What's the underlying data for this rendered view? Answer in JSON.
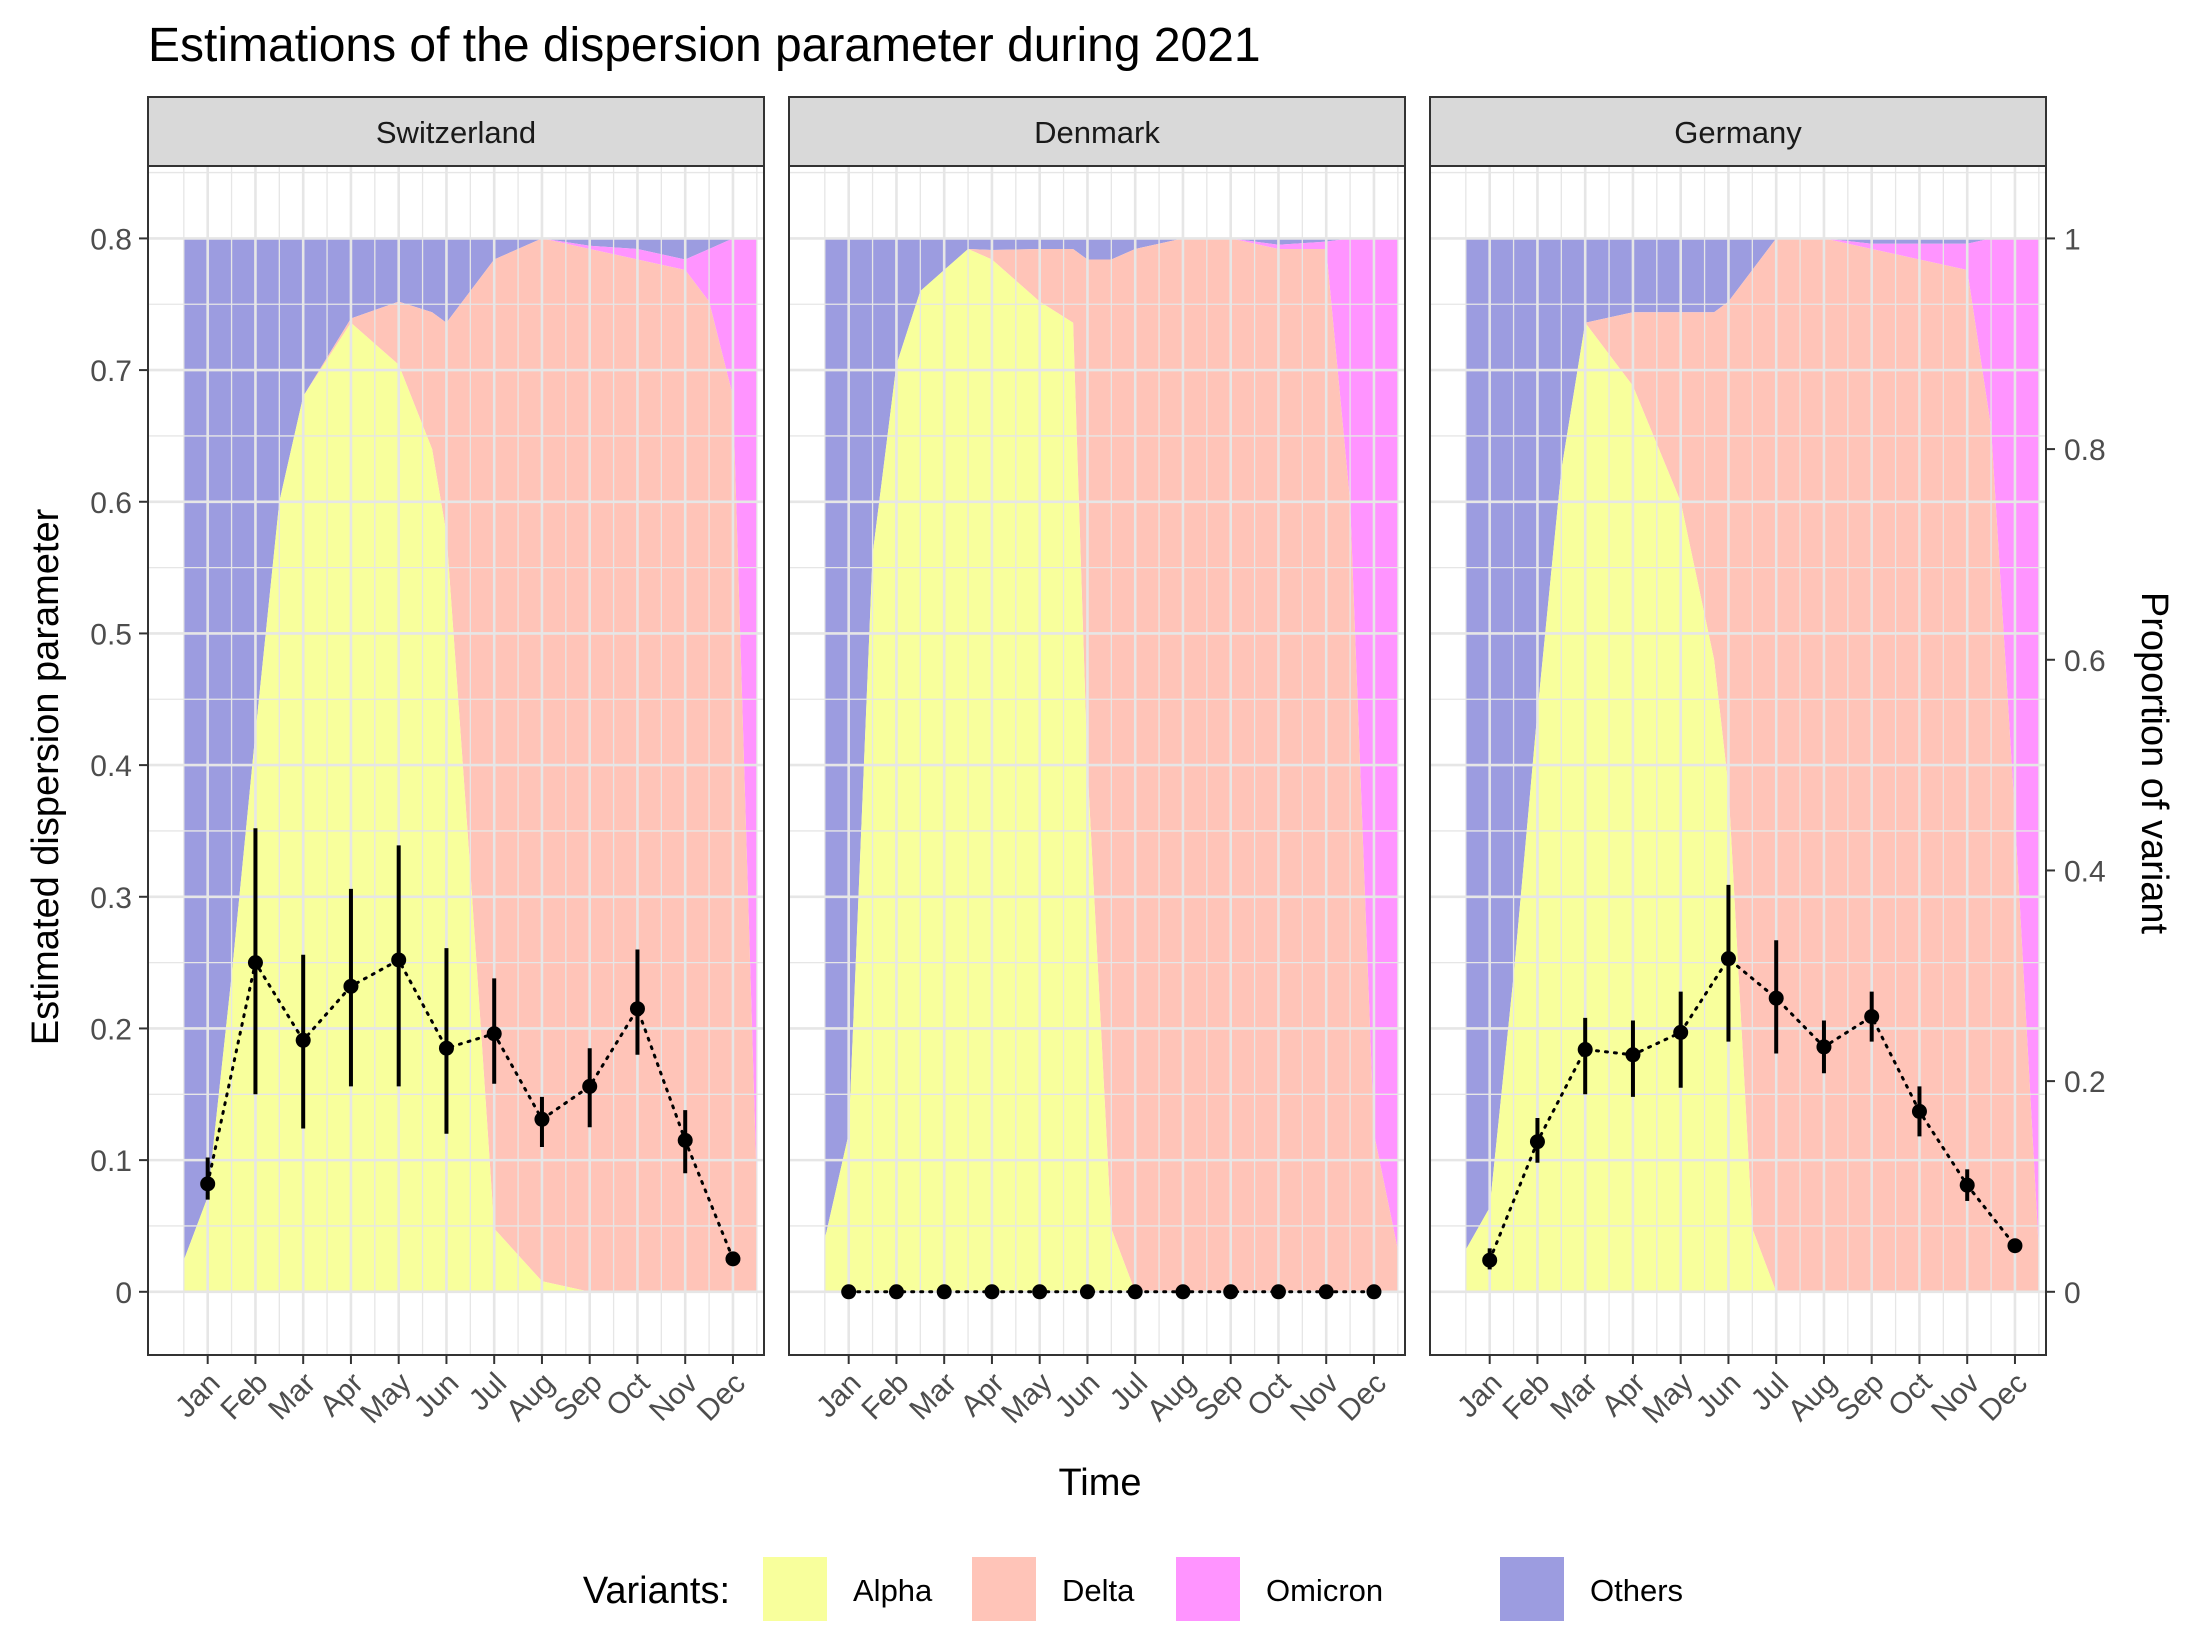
{
  "title": "Estimations of the dispersion parameter during 2021",
  "chart_data": {
    "type": "line",
    "title": "Estimations of the dispersion parameter during 2021",
    "xlabel": "Time",
    "ylabel": "Estimated dispersion parameter",
    "y2label": "Proportion of variant",
    "ylim": [
      -0.048,
      0.855
    ],
    "y2lim": [
      0,
      1
    ],
    "yticks": [
      "0",
      "0.1",
      "0.2",
      "0.3",
      "0.4",
      "0.5",
      "0.6",
      "0.7",
      "0.8"
    ],
    "y2ticks": [
      "0",
      "0.2",
      "0.4",
      "0.6",
      "0.8",
      "1"
    ],
    "grid": true,
    "categories": [
      "Jan",
      "Feb",
      "Mar",
      "Apr",
      "May",
      "Jun",
      "Jul",
      "Aug",
      "Sep",
      "Oct",
      "Nov",
      "Dec"
    ],
    "legend": {
      "title": "Variants:",
      "position": "bottom",
      "items": [
        {
          "label": "Alpha",
          "color": "#f8ff9c"
        },
        {
          "label": "Delta",
          "color": "#ffc4b8"
        },
        {
          "label": "Omicron",
          "color": "#ff94ff"
        },
        {
          "label": "Others",
          "color": "#9c9ce0"
        }
      ]
    },
    "facets": [
      {
        "name": "Switzerland",
        "estimates": [
          0.082,
          0.25,
          0.191,
          0.232,
          0.252,
          0.185,
          0.196,
          0.131,
          0.156,
          0.215,
          0.115,
          0.025
        ],
        "lower": [
          0.07,
          0.15,
          0.124,
          0.156,
          0.156,
          0.12,
          0.158,
          0.11,
          0.125,
          0.18,
          0.09,
          0.02
        ],
        "upper": [
          0.102,
          0.352,
          0.256,
          0.306,
          0.339,
          0.261,
          0.238,
          0.148,
          0.185,
          0.26,
          0.138,
          0.03
        ],
        "variant_proportions": {
          "x": [
            0.5,
            1,
            1.5,
            2,
            2.5,
            3,
            4,
            5,
            5.7,
            6,
            6.5,
            7,
            8,
            9,
            10,
            11,
            11.5,
            12,
            12.5
          ],
          "alpha": [
            0.03,
            0.09,
            0.3,
            0.53,
            0.75,
            0.85,
            0.92,
            0.88,
            0.8,
            0.72,
            0.4,
            0.06,
            0.01,
            0,
            0,
            0,
            0,
            0,
            0
          ],
          "delta": [
            0,
            0,
            0,
            0,
            0,
            0,
            0.004,
            0.06,
            0.13,
            0.2,
            0.55,
            0.92,
            0.99,
            0.99,
            0.98,
            0.97,
            0.94,
            0.85,
            0.1
          ],
          "omicron": [
            0,
            0,
            0,
            0,
            0,
            0,
            0,
            0,
            0,
            0,
            0,
            0,
            0,
            0.003,
            0.01,
            0.01,
            0.05,
            0.15,
            0.9
          ]
        }
      },
      {
        "name": "Denmark",
        "estimates": [
          0,
          0,
          0,
          0,
          0,
          0,
          0,
          0,
          0,
          0,
          0,
          0
        ],
        "variant_proportions": {
          "x": [
            0.5,
            1,
            1.5,
            2,
            2.5,
            3,
            3.5,
            4,
            5,
            5.7,
            6,
            6.5,
            7,
            8,
            9,
            10,
            11,
            11.5,
            12,
            12.5
          ],
          "alpha": [
            0.05,
            0.15,
            0.7,
            0.88,
            0.95,
            0.97,
            0.99,
            0.98,
            0.94,
            0.92,
            0.5,
            0.06,
            0,
            0,
            0,
            0,
            0,
            0,
            0,
            0
          ],
          "delta": [
            0,
            0,
            0,
            0,
            0,
            0,
            0,
            0.009,
            0.05,
            0.07,
            0.48,
            0.92,
            0.99,
            1.0,
            1.0,
            0.99,
            0.99,
            0.75,
            0.15,
            0.04
          ],
          "omicron": [
            0,
            0,
            0,
            0,
            0,
            0,
            0,
            0,
            0,
            0,
            0,
            0,
            0,
            0,
            0,
            0.004,
            0.007,
            0.25,
            0.85,
            0.96
          ]
        }
      },
      {
        "name": "Germany",
        "estimates": [
          0.024,
          0.114,
          0.184,
          0.18,
          0.197,
          0.253,
          0.223,
          0.186,
          0.209,
          0.137,
          0.081,
          0.035
        ],
        "lower": [
          0.017,
          0.098,
          0.15,
          0.148,
          0.155,
          0.19,
          0.181,
          0.166,
          0.19,
          0.118,
          0.069,
          0.032
        ],
        "upper": [
          0.033,
          0.132,
          0.208,
          0.206,
          0.228,
          0.309,
          0.267,
          0.206,
          0.228,
          0.156,
          0.093,
          0.04
        ],
        "variant_proportions": {
          "x": [
            0.5,
            1,
            1.5,
            2,
            2.5,
            3,
            4,
            5,
            5.7,
            6,
            6.5,
            7,
            8,
            9,
            10,
            11,
            11.5,
            12,
            12.5
          ],
          "alpha": [
            0.04,
            0.08,
            0.3,
            0.55,
            0.78,
            0.92,
            0.86,
            0.75,
            0.6,
            0.48,
            0.06,
            0,
            0,
            0,
            0,
            0,
            0,
            0,
            0
          ],
          "delta": [
            0,
            0,
            0,
            0,
            0,
            0,
            0.07,
            0.18,
            0.33,
            0.46,
            0.91,
            1.0,
            1.0,
            0.99,
            0.98,
            0.97,
            0.82,
            0.45,
            0.04
          ],
          "omicron": [
            0,
            0,
            0,
            0,
            0,
            0,
            0,
            0,
            0,
            0,
            0,
            0,
            0,
            0.005,
            0.015,
            0.025,
            0.18,
            0.55,
            0.96
          ]
        }
      }
    ]
  }
}
